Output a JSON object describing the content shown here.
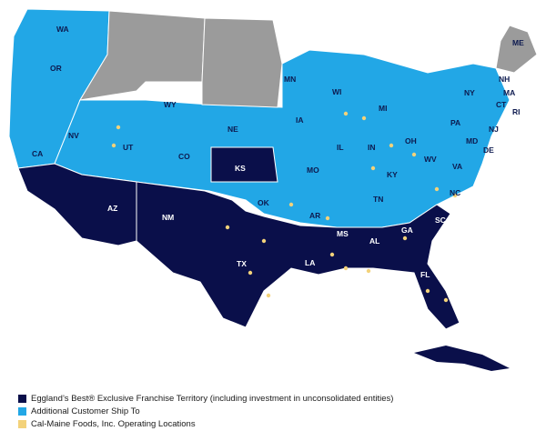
{
  "colors": {
    "franchise": "#0a0f4a",
    "ship_to": "#22a7e6",
    "other": "#9b9b9b",
    "locations": "#f3d27a",
    "border": "#ffffff"
  },
  "state_labels": {
    "franchise": [
      "KS",
      "AZ",
      "NM",
      "TX",
      "LA",
      "MS",
      "AL",
      "GA",
      "SC",
      "FL"
    ],
    "ship_to": [
      "WA",
      "OR",
      "CA",
      "NV",
      "UT",
      "WY",
      "CO",
      "NE",
      "MN",
      "IA",
      "WI",
      "IL",
      "MO",
      "OK",
      "AR",
      "MI",
      "IN",
      "OH",
      "KY",
      "TN",
      "NY",
      "PA",
      "WV",
      "VA",
      "NC",
      "ME",
      "NH",
      "MA",
      "CT",
      "NJ",
      "MD",
      "DE",
      "RI"
    ]
  },
  "legend": [
    {
      "label": "Eggland’s Best® Exclusive Franchise Territory (including investment in unconsolidated entities)",
      "color": "#0a0f4a"
    },
    {
      "label": "Additional Customer Ship To",
      "color": "#22a7e6"
    },
    {
      "label": "Cal-Maine Foods, Inc. Operating Locations",
      "color": "#f3d27a"
    }
  ]
}
